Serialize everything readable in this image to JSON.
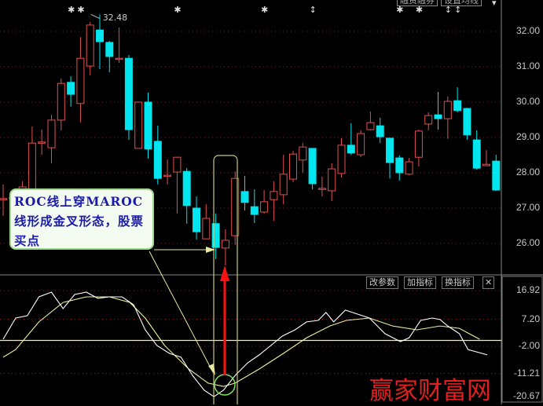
{
  "toolbar": {
    "margin_button": "融资融券",
    "ma_button": "设置均线",
    "menu_arrow": "▾"
  },
  "price_axis": {
    "labels": [
      "32.00",
      "31.00",
      "30.00",
      "29.00",
      "28.00",
      "27.00",
      "26.00"
    ],
    "values": [
      32,
      31,
      30,
      29,
      28,
      27,
      26
    ]
  },
  "indicator_axis": {
    "labels": [
      "16.92",
      "7.20",
      "-2.00",
      "-11.21",
      "-20.67"
    ],
    "values": [
      16.92,
      7.2,
      -2,
      -11.21,
      -20.67
    ]
  },
  "indicator_buttons": {
    "edit_params": "改参数",
    "add_indicator": "加指标",
    "switch_indicator": "换指标",
    "close": "✕"
  },
  "high_marker": {
    "label": "32.48",
    "value": 32.48,
    "index": 9
  },
  "event_marks": [
    {
      "index": 7,
      "symbol": "✱"
    },
    {
      "index": 8,
      "symbol": "✱"
    },
    {
      "index": 18,
      "symbol": "✱"
    },
    {
      "index": 27,
      "symbol": "✱"
    },
    {
      "index": 32,
      "symbol": "↕"
    },
    {
      "index": 41,
      "symbol": "✱"
    },
    {
      "index": 43,
      "symbol": "✱"
    },
    {
      "index": 46,
      "symbol": "↕"
    },
    {
      "index": 47,
      "symbol": "↕"
    }
  ],
  "annotation": {
    "text": "ROC线上穿MAROC线形成金叉形态，股票买点"
  },
  "watermark": "赢家财富网",
  "colors": {
    "up": "#e05050",
    "down": "#00e5ee",
    "grid": "#8a2020",
    "roc": "#ffffff",
    "maroc": "#f0f0a0",
    "zero_line": "#f0f0a0",
    "highlight": "#c8c878",
    "circle": "#7de060",
    "arrow": "#ff1010",
    "annotation_line": "#e8e8a0"
  },
  "chart_data": {
    "type": "candlestick",
    "ohlc_fields": [
      "open",
      "close",
      "high",
      "low"
    ],
    "candles": [
      [
        27.27,
        27.27,
        27.67,
        26.78
      ],
      [
        27.3,
        27.3,
        27.5,
        27.1
      ],
      [
        27.0,
        27.6,
        27.76,
        26.9
      ],
      [
        27.33,
        28.84,
        29.31,
        27.07
      ],
      [
        28.87,
        28.87,
        29.22,
        28.51
      ],
      [
        28.71,
        29.49,
        29.64,
        28.27
      ],
      [
        29.49,
        30.53,
        30.67,
        29.2
      ],
      [
        30.56,
        30.22,
        30.73,
        29.87
      ],
      [
        29.96,
        31.24,
        31.84,
        29.42
      ],
      [
        31.02,
        32.18,
        32.27,
        30.76
      ],
      [
        32.04,
        31.71,
        32.48,
        30.93
      ],
      [
        31.69,
        31.29,
        31.73,
        30.84
      ],
      [
        31.24,
        31.24,
        32.11,
        31.11
      ],
      [
        31.24,
        29.22,
        31.33,
        28.93
      ],
      [
        28.69,
        30.0,
        30.0,
        28.69
      ],
      [
        30.0,
        28.67,
        30.27,
        28.4
      ],
      [
        28.89,
        27.84,
        29.33,
        27.67
      ],
      [
        27.93,
        27.93,
        28.38,
        27.67
      ],
      [
        28.02,
        28.44,
        28.44,
        26.84
      ],
      [
        28.04,
        27.07,
        28.13,
        26.56
      ],
      [
        27.0,
        26.33,
        27.33,
        26.11
      ],
      [
        26.13,
        26.71,
        27.11,
        26.13
      ],
      [
        26.56,
        25.89,
        26.84,
        25.56
      ],
      [
        25.87,
        26.09,
        26.4,
        25.38
      ],
      [
        26.22,
        27.84,
        28.04,
        25.96
      ],
      [
        27.47,
        27.16,
        27.91,
        26.93
      ],
      [
        27.04,
        26.82,
        27.53,
        26.58
      ],
      [
        26.89,
        27.18,
        27.51,
        26.84
      ],
      [
        27.24,
        27.47,
        27.76,
        26.64
      ],
      [
        27.38,
        27.96,
        28.51,
        27.11
      ],
      [
        27.82,
        28.53,
        28.62,
        27.73
      ],
      [
        28.36,
        28.73,
        28.84,
        28.0
      ],
      [
        28.69,
        27.69,
        28.69,
        27.53
      ],
      [
        27.56,
        27.56,
        27.89,
        27.33
      ],
      [
        27.49,
        28.11,
        28.27,
        27.2
      ],
      [
        27.98,
        28.78,
        28.98,
        27.87
      ],
      [
        28.78,
        28.56,
        29.4,
        28.51
      ],
      [
        28.51,
        29.11,
        29.2,
        28.44
      ],
      [
        29.22,
        29.42,
        29.73,
        29.2
      ],
      [
        29.33,
        29.02,
        29.56,
        28.84
      ],
      [
        28.98,
        28.29,
        28.98,
        27.84
      ],
      [
        28.42,
        28.0,
        28.49,
        27.78
      ],
      [
        27.96,
        28.31,
        28.42,
        27.93
      ],
      [
        28.44,
        29.18,
        29.22,
        28.18
      ],
      [
        29.38,
        29.62,
        29.71,
        29.2
      ],
      [
        29.64,
        29.53,
        30.29,
        29.22
      ],
      [
        29.53,
        30.02,
        30.16,
        28.96
      ],
      [
        30.04,
        29.76,
        30.42,
        29.71
      ],
      [
        29.82,
        29.07,
        29.84,
        28.93
      ],
      [
        28.93,
        28.13,
        29.2,
        28.09
      ],
      [
        28.2,
        28.24,
        28.64,
        28.2
      ],
      [
        28.33,
        27.51,
        28.51,
        27.49
      ]
    ],
    "price_range": [
      25.0,
      32.9
    ],
    "indicator": {
      "range": [
        -20.67,
        21
      ],
      "zero_line": 0,
      "roc": [
        [
          0,
          0.4
        ],
        [
          1.3,
          7.6
        ],
        [
          2.5,
          8.4
        ],
        [
          3.7,
          14.8
        ],
        [
          5,
          16.4
        ],
        [
          6.2,
          10.8
        ],
        [
          7.4,
          15.6
        ],
        [
          8.6,
          16.4
        ],
        [
          9.8,
          14.3
        ],
        [
          11,
          14.8
        ],
        [
          12.3,
          14.8
        ],
        [
          13.5,
          12.1
        ],
        [
          14.7,
          3.6
        ],
        [
          15.9,
          -1.7
        ],
        [
          17.2,
          -4.4
        ],
        [
          18.4,
          -5.7
        ],
        [
          19.6,
          -11.9
        ],
        [
          20.8,
          -16.9
        ],
        [
          21.8,
          -19.1
        ],
        [
          22.8,
          -16.9
        ],
        [
          24,
          -11.9
        ],
        [
          25.3,
          -7.6
        ],
        [
          26.5,
          -4.9
        ],
        [
          27.7,
          -1.7
        ],
        [
          28.9,
          1.5
        ],
        [
          30.2,
          3.6
        ],
        [
          31.4,
          6.3
        ],
        [
          32.6,
          6.8
        ],
        [
          33.4,
          9.5
        ],
        [
          34.2,
          6.3
        ],
        [
          35.4,
          10.3
        ],
        [
          36.7,
          8.9
        ],
        [
          37.9,
          7.6
        ],
        [
          39.5,
          2.3
        ],
        [
          41.1,
          -0.4
        ],
        [
          42,
          0.9
        ],
        [
          43.2,
          6.8
        ],
        [
          44.4,
          7.6
        ],
        [
          45.2,
          7.1
        ],
        [
          46,
          4.9
        ],
        [
          47.2,
          2.3
        ],
        [
          48.1,
          -3.1
        ],
        [
          50.1,
          -4.9
        ]
      ],
      "maroc": [
        [
          0,
          -5.7
        ],
        [
          1.3,
          -3.1
        ],
        [
          3.7,
          6.3
        ],
        [
          6.2,
          12.9
        ],
        [
          8.6,
          14.8
        ],
        [
          11,
          14.8
        ],
        [
          13.1,
          12.9
        ],
        [
          14.7,
          7.6
        ],
        [
          16.7,
          -1.7
        ],
        [
          19.2,
          -9.7
        ],
        [
          21.2,
          -14.5
        ],
        [
          22.8,
          -15.6
        ],
        [
          24,
          -14.5
        ],
        [
          26.5,
          -9.7
        ],
        [
          29,
          -4.4
        ],
        [
          31.4,
          0.9
        ],
        [
          33.8,
          4.9
        ],
        [
          35.5,
          6.8
        ],
        [
          37.9,
          7.6
        ],
        [
          40.3,
          4.9
        ],
        [
          42.8,
          3.6
        ],
        [
          45.2,
          4.9
        ],
        [
          47.2,
          4.1
        ],
        [
          49.3,
          0.4
        ]
      ]
    },
    "grid": true
  }
}
